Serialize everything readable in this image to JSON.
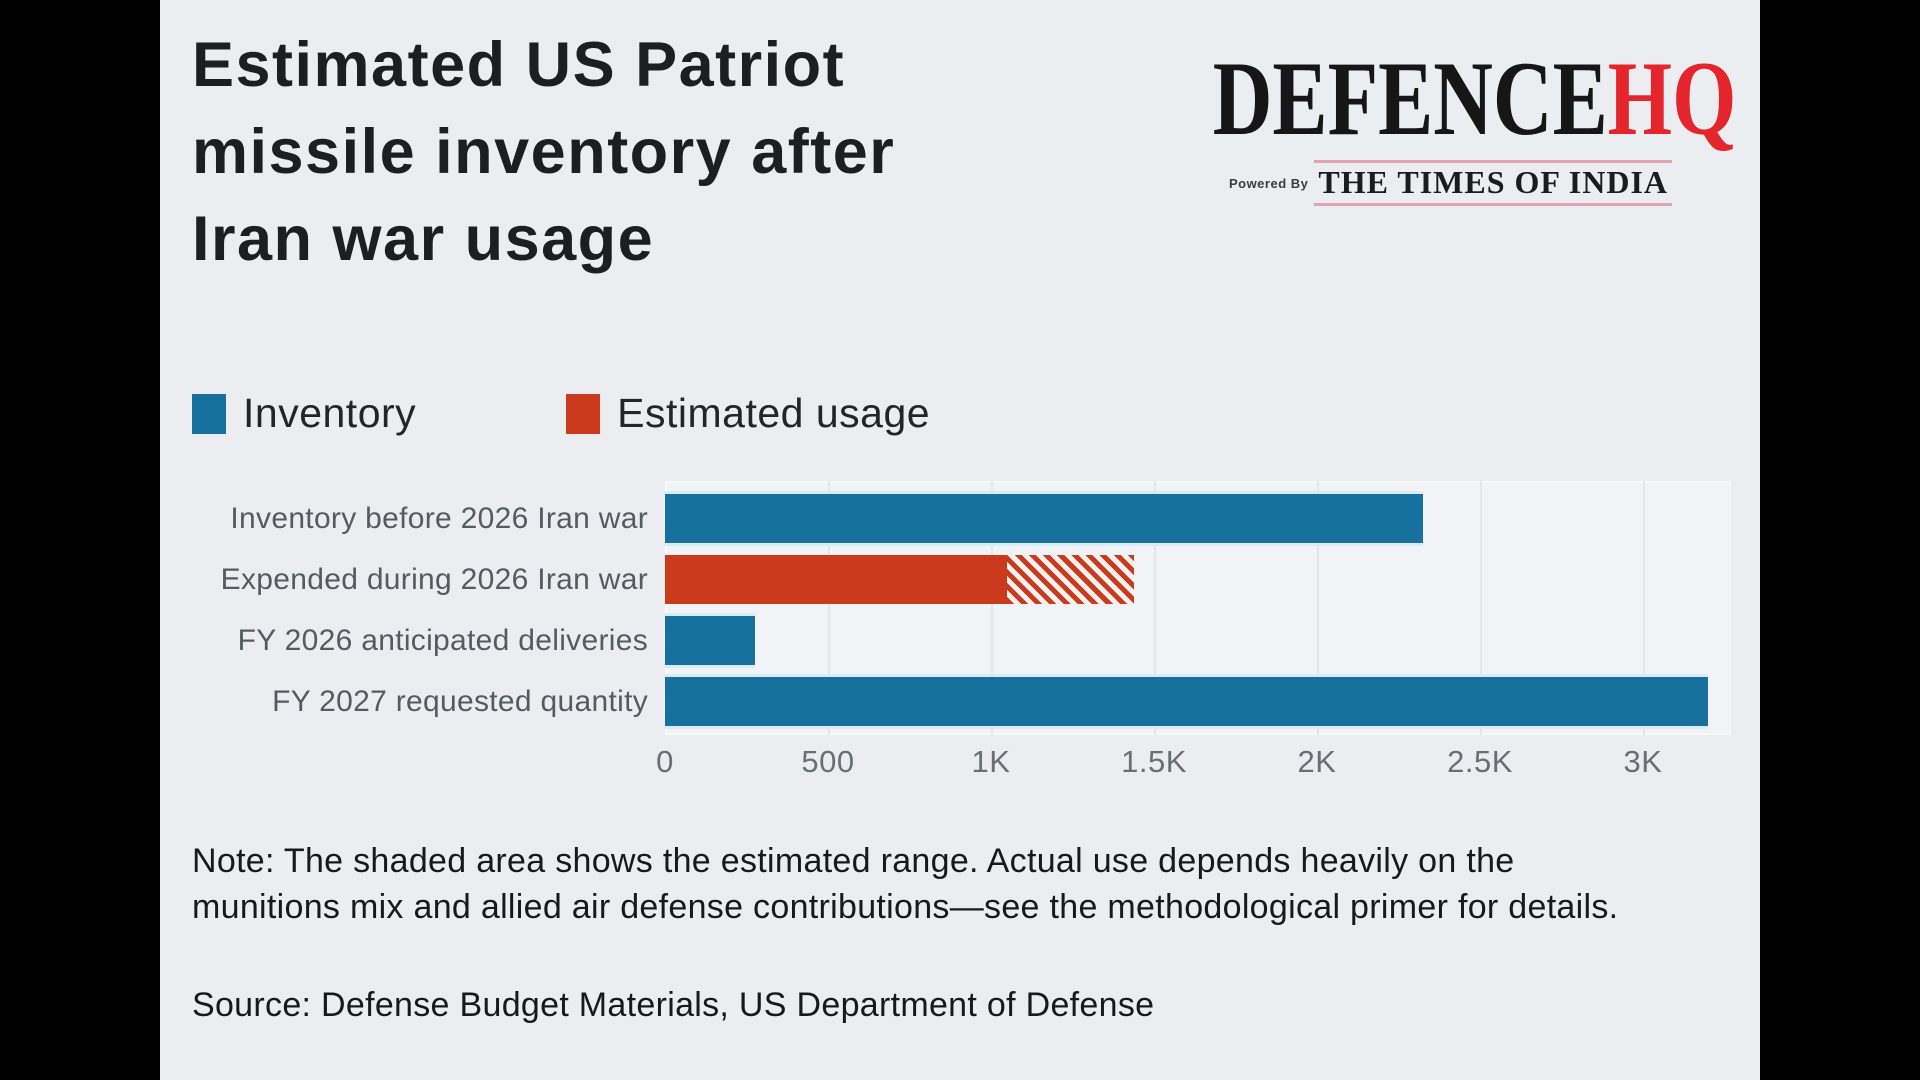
{
  "page": {
    "letterbox_color": "#000000",
    "card_background": "#ecedf1",
    "plot_background": "#f1f3f6"
  },
  "header": {
    "title": "Estimated US Patriot missile inventory after Iran war usage",
    "title_lines": [
      "Estimated US Patriot",
      "missile inventory after",
      "Iran war usage"
    ],
    "logo": {
      "brand_black": "DEFENCE",
      "brand_red": "HQ",
      "brand_red_color": "#e4252b",
      "powered_by": "Powered By",
      "publisher": "THE TIMES OF INDIA"
    }
  },
  "legend": {
    "items": [
      {
        "label": "Inventory",
        "color": "#17719e"
      },
      {
        "label": "Estimated usage",
        "color": "#cc3a1d"
      }
    ]
  },
  "chart_data": {
    "type": "bar",
    "orientation": "horizontal",
    "title": "Estimated US Patriot missile inventory after Iran war usage",
    "categories": [
      "Inventory before 2026 Iran war",
      "Expended during 2026 Iran war",
      "FY 2026 anticipated deliveries",
      "FY 2027 requested quantity"
    ],
    "bars": [
      {
        "label": "Inventory before 2026 Iran war",
        "series": "Inventory",
        "value": 2325,
        "color": "#17719e"
      },
      {
        "label": "Expended during 2026 Iran war",
        "series": "Estimated usage",
        "value": 1050,
        "range_max": 1440,
        "range_style": "hatched",
        "color": "#cc3a1d"
      },
      {
        "label": "FY 2026 anticipated deliveries",
        "series": "Inventory",
        "value": 275,
        "color": "#17719e"
      },
      {
        "label": "FY 2027 requested quantity",
        "series": "Inventory",
        "value": 3200,
        "color": "#17719e"
      }
    ],
    "xticks": {
      "values": [
        0,
        500,
        1000,
        1500,
        2000,
        2500,
        3000
      ],
      "labels": [
        "0",
        "500",
        "1K",
        "1.5K",
        "2K",
        "2.5K",
        "3K"
      ]
    },
    "xlim": [
      0,
      3270
    ],
    "grid": true,
    "legend_position": "top-left",
    "annotation": "Hatched segment on 'Expended during 2026 Iran war' depicts the estimated range from 1050 up to about 1440"
  },
  "footnote": {
    "text": "Note: The shaded area shows the estimated range. Actual use depends heavily on the munitions mix and allied air defense contributions—see the methodological primer for details."
  },
  "source": {
    "text": "Source: Defense Budget Materials, US Department of Defense"
  }
}
